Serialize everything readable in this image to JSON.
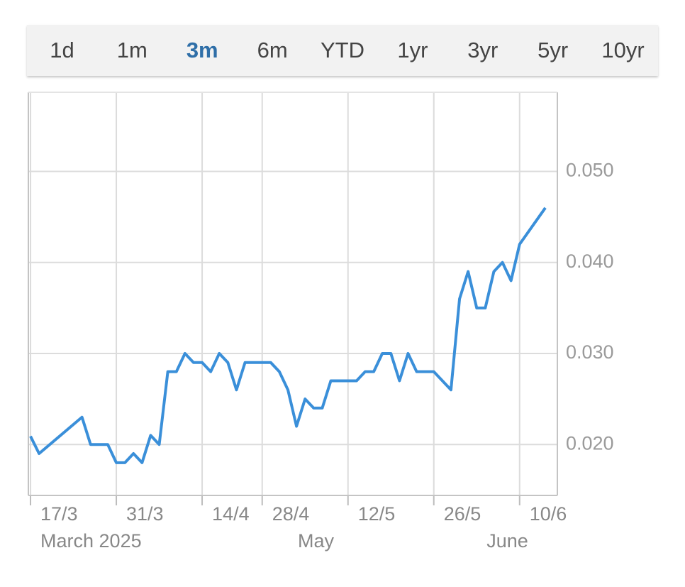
{
  "tabs": {
    "items": [
      "1d",
      "1m",
      "3m",
      "6m",
      "YTD",
      "1yr",
      "3yr",
      "5yr",
      "10yr"
    ],
    "active": 2
  },
  "chart_data": {
    "type": "line",
    "x": [
      0,
      1,
      6,
      7,
      9,
      10,
      11,
      12,
      13,
      14,
      15,
      16,
      17,
      18,
      19,
      20,
      21,
      22,
      23,
      24,
      25,
      28,
      29,
      30,
      31,
      32,
      33,
      34,
      35,
      38,
      39,
      40,
      41,
      42,
      43,
      44,
      45,
      47,
      49,
      50,
      51,
      52,
      53,
      54,
      55,
      56,
      57,
      60
    ],
    "series": [
      {
        "color": "#3a8fd9",
        "values": [
          0.0209,
          0.019,
          0.023,
          0.02,
          0.02,
          0.018,
          0.018,
          0.019,
          0.018,
          0.021,
          0.02,
          0.028,
          0.028,
          0.03,
          0.029,
          0.029,
          0.028,
          0.03,
          0.029,
          0.026,
          0.029,
          0.029,
          0.028,
          0.026,
          0.022,
          0.025,
          0.024,
          0.024,
          0.027,
          0.027,
          0.028,
          0.028,
          0.03,
          0.03,
          0.027,
          0.03,
          0.028,
          0.028,
          0.026,
          0.036,
          0.039,
          0.035,
          0.035,
          0.039,
          0.04,
          0.038,
          0.042,
          0.046
        ]
      }
    ],
    "xlim": [
      -0.25,
      61.4
    ],
    "xticks": [
      {
        "value": 0,
        "label": "17/3"
      },
      {
        "value": 10,
        "label": "31/3"
      },
      {
        "value": 20,
        "label": "14/4"
      },
      {
        "value": 27,
        "label": "28/4"
      },
      {
        "value": 37,
        "label": "12/5"
      },
      {
        "value": 47,
        "label": "26/5"
      },
      {
        "value": 57,
        "label": "10/6"
      }
    ],
    "month_labels": [
      {
        "value": 0,
        "label": "March 2025"
      },
      {
        "value": 30,
        "label": "May"
      },
      {
        "value": 52,
        "label": "June"
      }
    ],
    "ylim": [
      0.0144,
      0.0587
    ],
    "yticks": [
      {
        "value": 0.02,
        "label": "0.020"
      },
      {
        "value": 0.03,
        "label": "0.030"
      },
      {
        "value": 0.04,
        "label": "0.040"
      },
      {
        "value": 0.05,
        "label": "0.050"
      }
    ],
    "grid": true
  }
}
